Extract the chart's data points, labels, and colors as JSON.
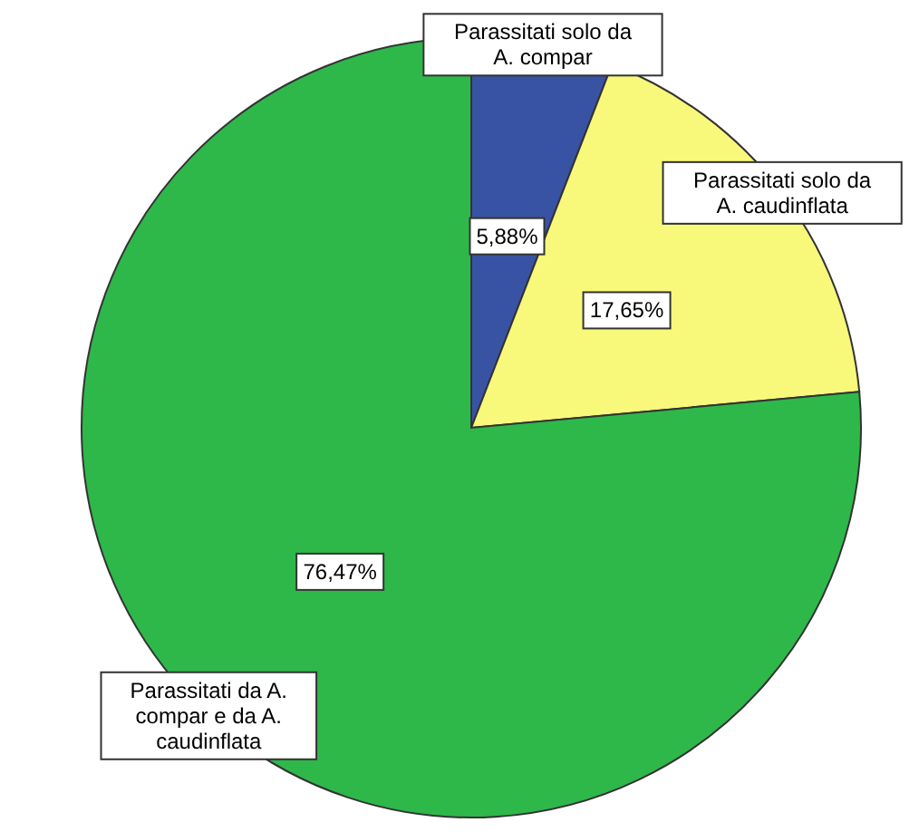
{
  "chart_data": {
    "type": "pie",
    "categories": [
      "Parassitati solo da A. compar",
      "Parassitati solo da A. caudinflata",
      "Parassitati da A. compar e da A. caudinflata"
    ],
    "values": [
      5.88,
      17.65,
      76.47
    ],
    "colors": [
      "#3953a4",
      "#f8f87a",
      "#2eb84a"
    ],
    "value_labels": [
      "5,88%",
      "17,65%",
      "76,47%"
    ]
  }
}
